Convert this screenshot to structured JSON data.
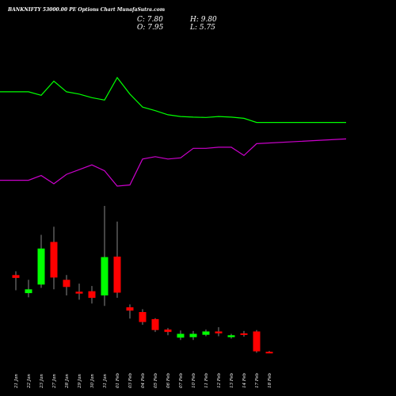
{
  "header": {
    "title": "BANKNIFTY 53000.00 PE Options Chart MunafaSutra.com",
    "close_label": "C: 7.80",
    "high_label": "H: 9.80",
    "open_label": "O: 7.95",
    "low_label": "L: 5.75"
  },
  "chart_data": {
    "type": "candlestick",
    "title": "BANKNIFTY 53000.00 PE Options Chart MunafaSutra.com",
    "up_color": "#00ff00",
    "down_color": "#ff0000",
    "indicator_colors": {
      "green_line": "#00ff00",
      "magenta_line": "#cc00cc"
    },
    "categories": [
      "21 Jan",
      "22 Jan",
      "23 Jan",
      "27 Jan",
      "28 Jan",
      "29 Jan",
      "30 Jan",
      "31 Jan",
      "01 Feb",
      "03 Feb",
      "04 Feb",
      "05 Feb",
      "06 Feb",
      "07 Feb",
      "10 Feb",
      "11 Feb",
      "12 Feb",
      "13 Feb",
      "14 Feb",
      "17 Feb",
      "18 Feb"
    ],
    "candles": [
      {
        "date": "21 Jan",
        "open": 170,
        "high": 178,
        "low": 138,
        "close": 164
      },
      {
        "date": "22 Jan",
        "open": 132,
        "high": 160,
        "low": 123,
        "close": 140
      },
      {
        "date": "23 Jan",
        "open": 150,
        "high": 255,
        "low": 143,
        "close": 226
      },
      {
        "date": "27 Jan",
        "open": 240,
        "high": 272,
        "low": 140,
        "close": 165
      },
      {
        "date": "28 Jan",
        "open": 160,
        "high": 170,
        "low": 127,
        "close": 145
      },
      {
        "date": "29 Jan",
        "open": 135,
        "high": 152,
        "low": 118,
        "close": 131
      },
      {
        "date": "30 Jan",
        "open": 136,
        "high": 147,
        "low": 110,
        "close": 122
      },
      {
        "date": "31 Jan",
        "open": 127,
        "high": 316,
        "low": 105,
        "close": 208
      },
      {
        "date": "01 Feb",
        "open": 209,
        "high": 283,
        "low": 122,
        "close": 133
      },
      {
        "date": "03 Feb",
        "open": 102,
        "high": 108,
        "low": 78,
        "close": 95
      },
      {
        "date": "04 Feb",
        "open": 92,
        "high": 98,
        "low": 65,
        "close": 71
      },
      {
        "date": "05 Feb",
        "open": 77,
        "high": 79,
        "low": 50,
        "close": 54
      },
      {
        "date": "06 Feb",
        "open": 55,
        "high": 58,
        "low": 43,
        "close": 50
      },
      {
        "date": "07 Feb",
        "open": 38,
        "high": 53,
        "low": 33,
        "close": 46
      },
      {
        "date": "10 Feb",
        "open": 39,
        "high": 52,
        "low": 33,
        "close": 46
      },
      {
        "date": "11 Feb",
        "open": 44,
        "high": 55,
        "low": 41,
        "close": 51
      },
      {
        "date": "12 Feb",
        "open": 51,
        "high": 60,
        "low": 41,
        "close": 47
      },
      {
        "date": "13 Feb",
        "open": 39,
        "high": 46,
        "low": 36,
        "close": 43
      },
      {
        "date": "14 Feb",
        "open": 47,
        "high": 52,
        "low": 40,
        "close": 45
      },
      {
        "date": "17 Feb",
        "open": 51,
        "high": 54,
        "low": 6,
        "close": 9
      },
      {
        "date": "18 Feb",
        "open": 7.95,
        "high": 9.8,
        "low": 5.75,
        "close": 7.8
      }
    ],
    "green_line": [
      0.79,
      0.79,
      0.82,
      0.7,
      0.79,
      0.81,
      0.84,
      0.86,
      0.67,
      0.81,
      0.92,
      0.95,
      0.985,
      1.0,
      1.005,
      1.008,
      1.0,
      1.005,
      1.015,
      1.05,
      1.05
    ],
    "magenta_line": [
      1.54,
      1.54,
      1.5,
      1.57,
      1.49,
      1.45,
      1.41,
      1.46,
      1.59,
      1.58,
      1.36,
      1.34,
      1.36,
      1.35,
      1.27,
      1.27,
      1.26,
      1.26,
      1.33,
      1.23,
      1.19
    ]
  }
}
